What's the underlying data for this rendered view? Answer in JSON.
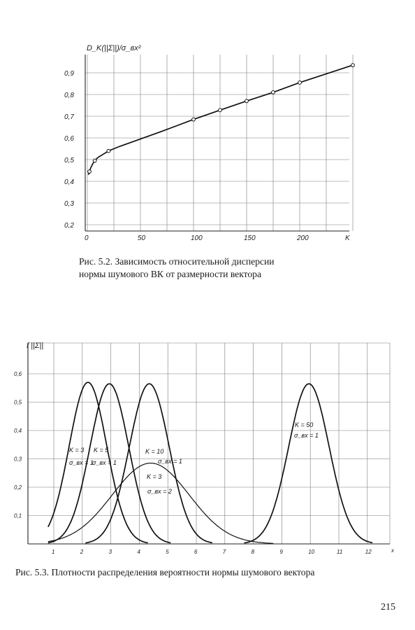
{
  "page_number": "215",
  "chart_data": [
    {
      "type": "line",
      "caption": "Рис. 5.2. Зависимость относительной дисперсии нормы шумового ВК от размерности вектора",
      "ylabel": "D_K(||Σ||)/σ_вх²",
      "xlabel": "K",
      "xlim": [
        0,
        250
      ],
      "ylim": [
        0.2,
        0.95
      ],
      "x_ticks": [
        "0",
        "50",
        "100",
        "150",
        "200"
      ],
      "y_ticks": [
        "0,2",
        "0,3",
        "0,4",
        "0,5",
        "0,6",
        "0,7",
        "0,8",
        "0,9"
      ],
      "grid": true,
      "series": [
        {
          "x": [
            1,
            2,
            3,
            5,
            7,
            10,
            15,
            20,
            30,
            50,
            70,
            100,
            125,
            150,
            175,
            200,
            250
          ],
          "y": [
            0.43,
            0.445,
            0.46,
            0.48,
            0.495,
            0.51,
            0.525,
            0.54,
            0.56,
            0.595,
            0.63,
            0.685,
            0.728,
            0.77,
            0.81,
            0.855,
            0.935
          ],
          "markers_x": [
            2,
            7,
            20,
            100,
            125,
            150,
            175,
            200,
            250
          ],
          "markers_y": [
            0.445,
            0.495,
            0.54,
            0.685,
            0.728,
            0.77,
            0.81,
            0.855,
            0.935
          ]
        }
      ]
    },
    {
      "type": "line",
      "caption": "Рис. 5.3. Плотности распределения вероятности нормы шумового вектора",
      "ylabel": "f ||Σ||",
      "xlabel": "x",
      "xlim": [
        0,
        13
      ],
      "ylim": [
        0,
        0.7
      ],
      "x_ticks": [
        "1",
        "2",
        "3",
        "4",
        "5",
        "6",
        "7",
        "8",
        "9",
        "10",
        "11",
        "12"
      ],
      "y_ticks": [
        "0,1",
        "0,2",
        "0,3",
        "0,4",
        "0,5",
        "0,6"
      ],
      "grid": true,
      "series": [
        {
          "label_k": "K = 3",
          "label_sigma": "σ_вх = 1",
          "peak_x": 2.2,
          "peak_y": 0.57,
          "sd": 0.66
        },
        {
          "label_k": "K = 5",
          "label_sigma": "σ_вх = 1",
          "peak_x": 2.95,
          "peak_y": 0.565,
          "sd": 0.68
        },
        {
          "label_k": "K = 10",
          "label_sigma": "σ_вх = 1",
          "peak_x": 4.35,
          "peak_y": 0.565,
          "sd": 0.7
        },
        {
          "label_k": "K = 3",
          "label_sigma": "σ_вх = 2",
          "peak_x": 4.4,
          "peak_y": 0.285,
          "sd": 1.35
        },
        {
          "label_k": "K = 50",
          "label_sigma": "σ_вх = 1",
          "peak_x": 9.95,
          "peak_y": 0.565,
          "sd": 0.71
        }
      ]
    }
  ]
}
